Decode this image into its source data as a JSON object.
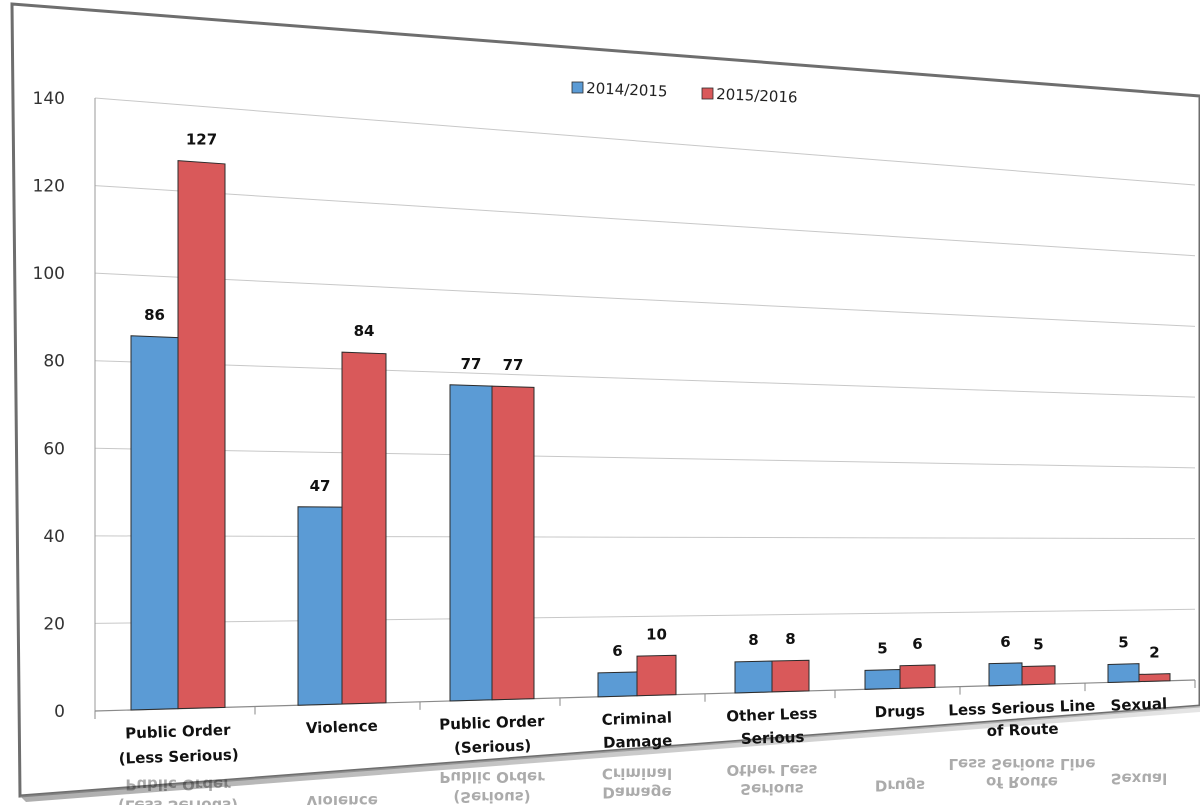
{
  "chart_data": {
    "type": "bar",
    "categories": [
      "Public Order\n(Less Serious)",
      "Violence",
      "Public Order\n(Serious)",
      "Criminal\nDamage",
      "Other Less\nSerious",
      "Drugs",
      "Less Serious Line\nof Route",
      "Sexual"
    ],
    "series": [
      {
        "name": "2014/2015",
        "values": [
          86,
          47,
          77,
          6,
          8,
          5,
          6,
          5
        ],
        "color": "#5b9bd5"
      },
      {
        "name": "2015/2016",
        "values": [
          127,
          84,
          77,
          10,
          8,
          6,
          5,
          2
        ],
        "color": "#d9595a"
      }
    ],
    "ylim": [
      0,
      140
    ],
    "yticks": [
      0,
      20,
      40,
      60,
      80,
      100,
      120,
      140
    ],
    "grid": true,
    "legend": "top-center",
    "title": "",
    "xlabel": "",
    "ylabel": ""
  },
  "colors": {
    "frame_border": "#6e6e6e",
    "grid": "#c8c8c8",
    "bar_edge": "#2b2b2b"
  }
}
